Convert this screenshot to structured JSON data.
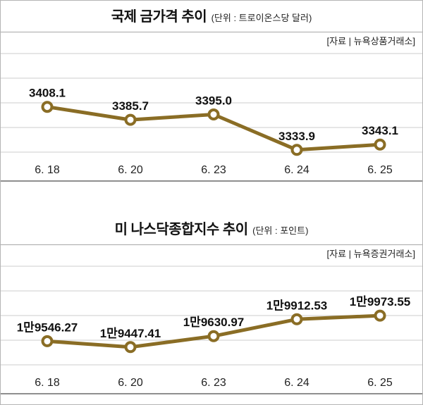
{
  "colors": {
    "grid": "#cdcdcd",
    "page_border": "#b5b5b5",
    "panel_border": "#8f8f8f",
    "label_text": "#111111",
    "axis_text": "#222222"
  },
  "chart_data": [
    {
      "type": "line",
      "title": "국제 금가격 추이",
      "unit_label": "(단위 : 트로이온스당 달러)",
      "source": "[자료 | 뉴욕상품거래소]",
      "categories": [
        "6. 18",
        "6. 20",
        "6. 23",
        "6. 24",
        "6. 25"
      ],
      "values": [
        3408.1,
        3385.7,
        3395.0,
        3333.9,
        3343.1
      ],
      "point_labels": [
        "3408.1",
        "3385.7",
        "3395.0",
        "3333.9",
        "3343.1"
      ],
      "xlabel": "",
      "ylabel": "",
      "ylim": [
        3330,
        3500
      ],
      "grid": true,
      "legend": "none",
      "line_color": "#8a6d25"
    },
    {
      "type": "line",
      "title": "미 나스닥종합지수 추이",
      "unit_label": "(단위 : 포인트)",
      "source": "[자료 | 뉴욕증권거래소]",
      "categories": [
        "6. 18",
        "6. 20",
        "6. 23",
        "6. 24",
        "6. 25"
      ],
      "values": [
        19546.27,
        19447.41,
        19630.97,
        19912.53,
        19973.55
      ],
      "point_labels": [
        "1만9546.27",
        "1만9447.41",
        "1만9630.97",
        "1만9912.53",
        "1만9973.55"
      ],
      "xlabel": "",
      "ylabel": "",
      "ylim": [
        19150,
        20800
      ],
      "grid": true,
      "legend": "none",
      "line_color": "#8a6d25"
    }
  ]
}
